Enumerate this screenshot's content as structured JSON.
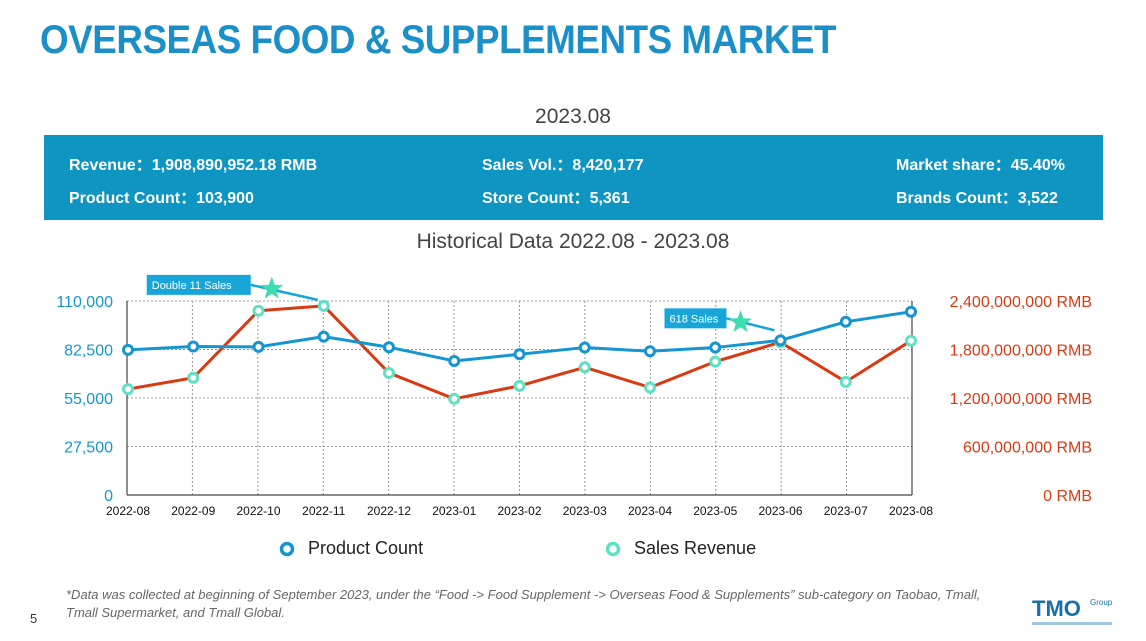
{
  "page": {
    "title": "OVERSEAS FOOD & SUPPLEMENTS MARKET",
    "period": "2023.08",
    "page_number": "5",
    "footnote": "*Data was collected at beginning of September 2023, under the “Food -> Food Supplement -> Overseas Food & Supplements” sub-category on Taobao, Tmall, Tmall Supermarket, and Tmall Global."
  },
  "stats": {
    "revenue_label": "Revenue",
    "revenue_value": "1,908,890,952.18 RMB",
    "sales_label": "Sales Vol.",
    "sales_value": "8,420,177",
    "share_label": "Market share",
    "share_value": "45.40%",
    "product_label": "Product Count",
    "product_value": "103,900",
    "store_label": "Store Count",
    "store_value": "5,361",
    "brands_label": "Brands Count",
    "brands_value": "3,522"
  },
  "chart_heading": "Historical Data 2022.08 - 2023.08",
  "logo": {
    "text": "TMO",
    "sub": "Group"
  },
  "colors": {
    "brand": "#1b8fc8",
    "banner": "#0e95c1",
    "product": "#1596d0",
    "revenue": "#d93a12",
    "revenue_marker": "#5fe0c2",
    "star": "#3fdcb0"
  },
  "chart_data": {
    "type": "line",
    "categories": [
      "2022-08",
      "2022-09",
      "2022-10",
      "2022-11",
      "2022-12",
      "2023-01",
      "2023-02",
      "2023-03",
      "2023-04",
      "2023-05",
      "2023-06",
      "2023-07",
      "2023-08"
    ],
    "series": [
      {
        "name": "Product Count",
        "axis": "left",
        "values": [
          82300,
          84200,
          84000,
          89800,
          83800,
          76000,
          79800,
          83600,
          81500,
          83600,
          87700,
          98200,
          103900
        ]
      },
      {
        "name": "Sales Revenue",
        "axis": "right",
        "values": [
          1310000000,
          1450000000,
          2280000000,
          2340000000,
          1510000000,
          1190000000,
          1350000000,
          1580000000,
          1330000000,
          1650000000,
          1890000000,
          1400000000,
          1908890952
        ]
      }
    ],
    "left_axis": {
      "ylim": [
        0,
        110000
      ],
      "ticks": [
        "0",
        "27,500",
        "55,000",
        "82,500",
        "110,000"
      ]
    },
    "right_axis": {
      "ylim": [
        0,
        2400000000
      ],
      "ticks": [
        "0 RMB",
        "600,000,000 RMB",
        "1,200,000,000 RMB",
        "1,800,000,000 RMB",
        "2,400,000,000 RMB"
      ]
    },
    "annotations": [
      {
        "text": "Double 11 Sales",
        "category": "2022-11"
      },
      {
        "text": "618 Sales",
        "category": "2023-06"
      }
    ],
    "grid": true,
    "legend_position": "bottom"
  }
}
